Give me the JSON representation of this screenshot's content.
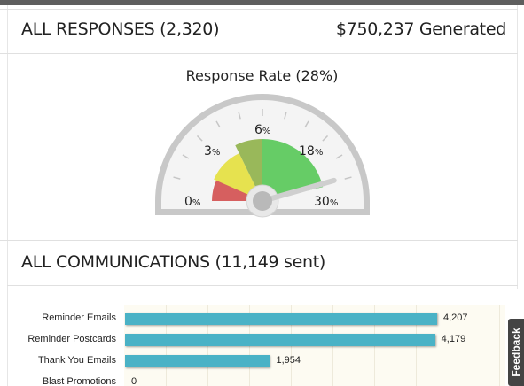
{
  "responses": {
    "title": "ALL RESPONSES (2,320)",
    "generated": "$750,237 Generated"
  },
  "gauge": {
    "title": "Response Rate (28%)",
    "value_percent": 28,
    "scale_max_percent": 30,
    "ticks": [
      {
        "num": "0",
        "unit": "%"
      },
      {
        "num": "3",
        "unit": "%"
      },
      {
        "num": "6",
        "unit": "%"
      },
      {
        "num": "18",
        "unit": "%"
      },
      {
        "num": "30",
        "unit": "%"
      }
    ],
    "zones": [
      {
        "name": "red",
        "color": "#d65f5f"
      },
      {
        "name": "yellow",
        "color": "#e6e24f"
      },
      {
        "name": "olive",
        "color": "#99b85a"
      },
      {
        "name": "green",
        "color": "#66cc66"
      }
    ]
  },
  "communications": {
    "title": "ALL COMMUNICATIONS (11,149 sent)"
  },
  "chart_data": {
    "type": "bar",
    "orientation": "horizontal",
    "categories": [
      "Reminder Emails",
      "Reminder Postcards",
      "Thank You Emails",
      "Blast Promotions"
    ],
    "values": [
      4207,
      4179,
      1954,
      0
    ],
    "value_labels": [
      "4,207",
      "4,179",
      "1,954",
      "0"
    ],
    "xlim": [
      0,
      5000
    ],
    "bar_color": "#4ab2c6",
    "grid": true
  },
  "feedback": {
    "label": "Feedback"
  }
}
